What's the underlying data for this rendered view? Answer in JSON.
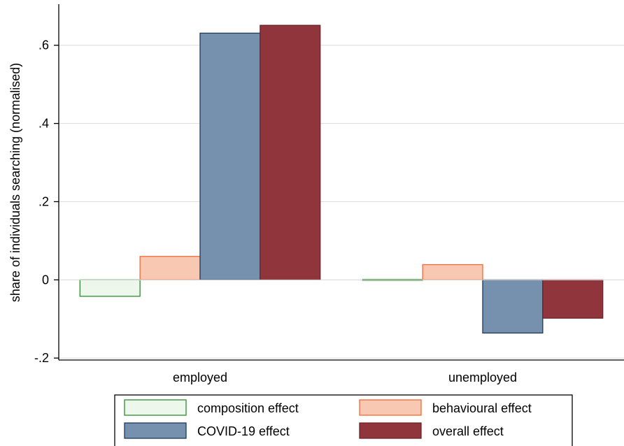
{
  "chart_data": {
    "type": "bar",
    "title": "",
    "xlabel": "",
    "ylabel": "share of individuals searching (normalised)",
    "categories": [
      "employed",
      "unemployed"
    ],
    "ylim": [
      -0.205,
      0.705
    ],
    "yticks": [
      -0.2,
      0,
      0.2,
      0.4,
      0.6
    ],
    "ytick_labels": [
      "-.2",
      "0",
      ".2",
      ".4",
      ".6"
    ],
    "grid": true,
    "legend_position": "bottom",
    "series": [
      {
        "name": "composition effect",
        "values": [
          -0.042,
          0.001
        ],
        "fill": "#eef7ec",
        "stroke": "#2e8b2e"
      },
      {
        "name": "behavioural effect",
        "values": [
          0.06,
          0.039
        ],
        "fill": "#f9c8b3",
        "stroke": "#ef6c35"
      },
      {
        "name": "COVID-19 effect",
        "values": [
          0.631,
          -0.136
        ],
        "fill": "#7691ad",
        "stroke": "#1c3a5c"
      },
      {
        "name": "overall effect",
        "values": [
          0.651,
          -0.098
        ],
        "fill": "#90353b",
        "stroke": "#6e2428"
      }
    ]
  }
}
